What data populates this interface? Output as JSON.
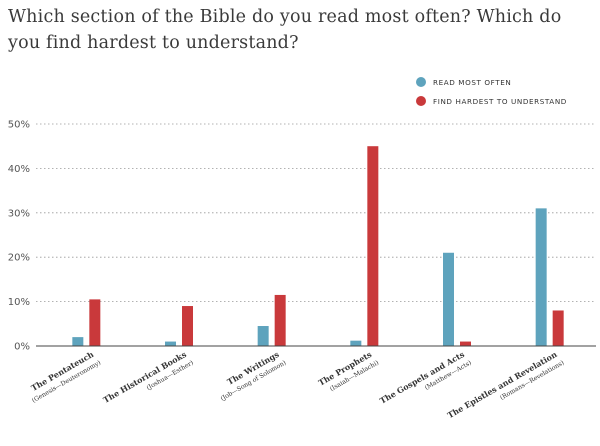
{
  "chart_data": {
    "type": "bar",
    "title": "Which section of the Bible do you read most often? Which do you find hardest to understand?",
    "categories": [
      {
        "name": "The Pentateuch",
        "sub": "(Genesis—Deuteronomy)"
      },
      {
        "name": "The Historical Books",
        "sub": "(Joshua—Esther)"
      },
      {
        "name": "The Writings",
        "sub": "(Job—Song of Solomon)"
      },
      {
        "name": "The Prophets",
        "sub": "(Isaiah—Malachi)"
      },
      {
        "name": "The Gospels and Acts",
        "sub": "(Matthew—Acts)"
      },
      {
        "name": "The Epistles and Revelation",
        "sub": "(Romans—Revelations)"
      }
    ],
    "series": [
      {
        "name": "READ MOST OFTEN",
        "color": "#5ea3bd",
        "values": [
          2,
          1,
          4.5,
          1.2,
          21,
          31
        ]
      },
      {
        "name": "FIND HARDEST TO UNDERSTAND",
        "color": "#c9393b",
        "values": [
          10.5,
          9,
          11.5,
          45,
          1,
          8
        ]
      }
    ],
    "ylim": [
      0,
      50
    ],
    "yticks": [
      {
        "value": 0,
        "label": "0%"
      },
      {
        "value": 10,
        "label": "10%"
      },
      {
        "value": 20,
        "label": "20%"
      },
      {
        "value": 30,
        "label": "30%"
      },
      {
        "value": 40,
        "label": "40%"
      },
      {
        "value": 50,
        "label": "50%"
      }
    ],
    "grid": true,
    "legend": "top-right",
    "xlabel": "",
    "ylabel": ""
  }
}
